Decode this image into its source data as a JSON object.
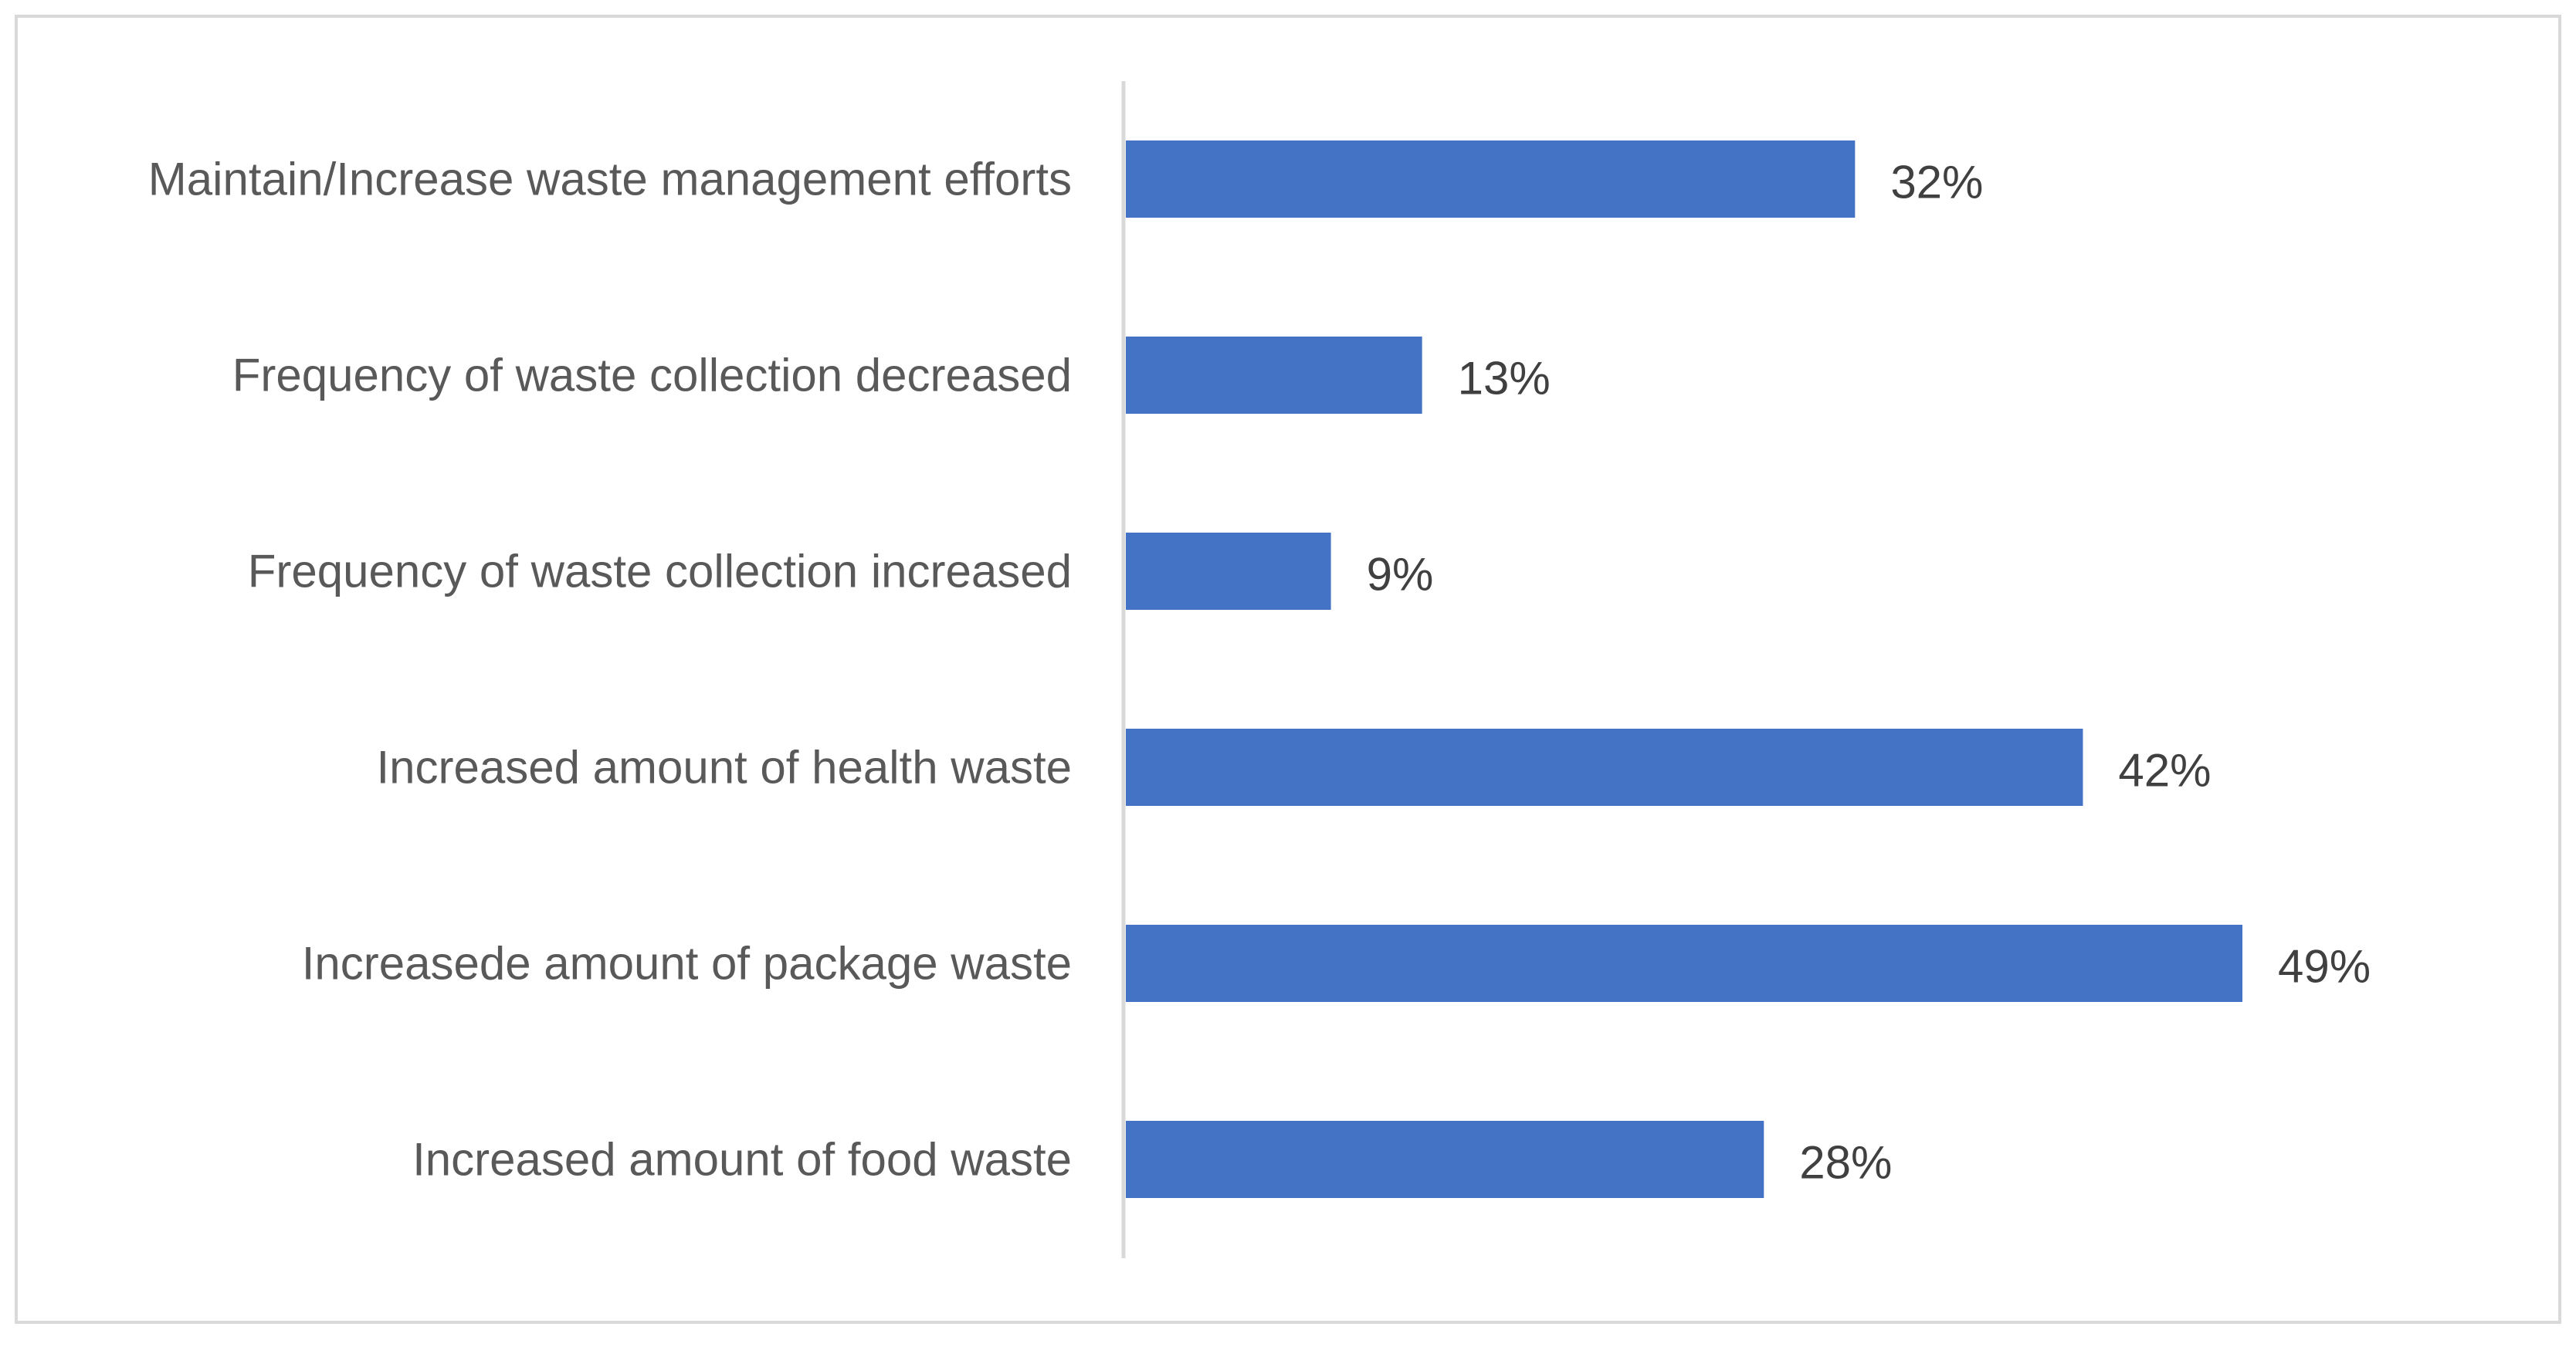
{
  "chart_data": {
    "type": "bar",
    "orientation": "horizontal",
    "title": "",
    "xlabel": "",
    "ylabel": "",
    "categories": [
      "Maintain/Increase waste management efforts",
      "Frequency of waste collection decreased",
      "Frequency of waste collection increased",
      "Increased amount of health waste",
      "Increasede amount of package waste",
      "Increased amount of food waste"
    ],
    "values": [
      32,
      13,
      9,
      42,
      49,
      28
    ],
    "value_labels": [
      "32%",
      "13%",
      "9%",
      "42%",
      "49%",
      "28%"
    ],
    "unit": "%",
    "xlim": [
      0,
      49
    ],
    "grid": false,
    "legend": "none"
  },
  "colors": {
    "bar": "#4472C4",
    "axis": "#D9D9D9",
    "frame": "#D9D9D9",
    "category_text": "#595959",
    "value_text": "#404040",
    "background": "#FFFFFF"
  }
}
